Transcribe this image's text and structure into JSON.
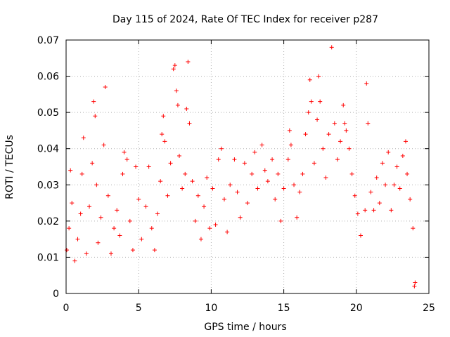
{
  "chart_data": {
    "type": "scatter",
    "title": "Day 115 of 2024, Rate Of TEC Index for receiver p287",
    "xlabel": "GPS time / hours",
    "ylabel": "ROTI / TECUs",
    "xlim": [
      0,
      25
    ],
    "ylim": [
      0,
      0.07
    ],
    "x_ticks": [
      0,
      5,
      10,
      15,
      20,
      25
    ],
    "x_tick_labels": [
      "0",
      "5",
      "10",
      "15",
      "20",
      "25"
    ],
    "y_ticks": [
      0,
      0.01,
      0.02,
      0.03,
      0.04,
      0.05,
      0.06,
      0.07
    ],
    "y_tick_labels": [
      "0",
      "0.01",
      "0.02",
      "0.03",
      "0.04",
      "0.05",
      "0.06",
      "0.07"
    ],
    "grid": true,
    "marker": "plus",
    "marker_color": "#ff0000",
    "series": [
      {
        "name": "ROTI",
        "points": [
          [
            0.05,
            0.012
          ],
          [
            0.2,
            0.018
          ],
          [
            0.3,
            0.034
          ],
          [
            0.4,
            0.025
          ],
          [
            0.6,
            0.009
          ],
          [
            0.8,
            0.015
          ],
          [
            1.0,
            0.022
          ],
          [
            1.1,
            0.033
          ],
          [
            1.2,
            0.043
          ],
          [
            1.4,
            0.011
          ],
          [
            1.6,
            0.024
          ],
          [
            1.8,
            0.036
          ],
          [
            1.9,
            0.053
          ],
          [
            2.0,
            0.049
          ],
          [
            2.1,
            0.03
          ],
          [
            2.2,
            0.014
          ],
          [
            2.4,
            0.021
          ],
          [
            2.6,
            0.041
          ],
          [
            2.7,
            0.057
          ],
          [
            2.9,
            0.027
          ],
          [
            3.1,
            0.011
          ],
          [
            3.3,
            0.018
          ],
          [
            3.5,
            0.023
          ],
          [
            3.7,
            0.016
          ],
          [
            3.9,
            0.033
          ],
          [
            4.0,
            0.039
          ],
          [
            4.2,
            0.037
          ],
          [
            4.4,
            0.02
          ],
          [
            4.6,
            0.012
          ],
          [
            4.8,
            0.035
          ],
          [
            5.0,
            0.026
          ],
          [
            5.2,
            0.015
          ],
          [
            5.5,
            0.024
          ],
          [
            5.7,
            0.035
          ],
          [
            5.9,
            0.018
          ],
          [
            6.1,
            0.012
          ],
          [
            6.3,
            0.022
          ],
          [
            6.5,
            0.031
          ],
          [
            6.6,
            0.044
          ],
          [
            6.7,
            0.049
          ],
          [
            6.8,
            0.042
          ],
          [
            7.0,
            0.027
          ],
          [
            7.2,
            0.036
          ],
          [
            7.4,
            0.062
          ],
          [
            7.5,
            0.063
          ],
          [
            7.6,
            0.056
          ],
          [
            7.7,
            0.052
          ],
          [
            7.8,
            0.038
          ],
          [
            8.0,
            0.029
          ],
          [
            8.2,
            0.033
          ],
          [
            8.3,
            0.051
          ],
          [
            8.4,
            0.064
          ],
          [
            8.5,
            0.047
          ],
          [
            8.7,
            0.031
          ],
          [
            8.9,
            0.02
          ],
          [
            9.1,
            0.027
          ],
          [
            9.3,
            0.015
          ],
          [
            9.5,
            0.024
          ],
          [
            9.7,
            0.032
          ],
          [
            9.9,
            0.018
          ],
          [
            10.1,
            0.029
          ],
          [
            10.3,
            0.019
          ],
          [
            10.5,
            0.037
          ],
          [
            10.7,
            0.04
          ],
          [
            10.9,
            0.026
          ],
          [
            11.1,
            0.017
          ],
          [
            11.3,
            0.03
          ],
          [
            11.6,
            0.037
          ],
          [
            11.8,
            0.028
          ],
          [
            12.0,
            0.021
          ],
          [
            12.3,
            0.036
          ],
          [
            12.5,
            0.025
          ],
          [
            12.8,
            0.033
          ],
          [
            13.0,
            0.039
          ],
          [
            13.2,
            0.029
          ],
          [
            13.5,
            0.041
          ],
          [
            13.7,
            0.034
          ],
          [
            13.9,
            0.031
          ],
          [
            14.2,
            0.037
          ],
          [
            14.4,
            0.026
          ],
          [
            14.6,
            0.033
          ],
          [
            14.8,
            0.02
          ],
          [
            15.0,
            0.029
          ],
          [
            15.3,
            0.037
          ],
          [
            15.4,
            0.045
          ],
          [
            15.5,
            0.041
          ],
          [
            15.7,
            0.03
          ],
          [
            15.9,
            0.021
          ],
          [
            16.1,
            0.028
          ],
          [
            16.3,
            0.033
          ],
          [
            16.5,
            0.044
          ],
          [
            16.7,
            0.05
          ],
          [
            16.8,
            0.059
          ],
          [
            16.9,
            0.053
          ],
          [
            17.1,
            0.036
          ],
          [
            17.3,
            0.048
          ],
          [
            17.4,
            0.06
          ],
          [
            17.5,
            0.053
          ],
          [
            17.7,
            0.04
          ],
          [
            17.9,
            0.032
          ],
          [
            18.1,
            0.044
          ],
          [
            18.3,
            0.068
          ],
          [
            18.5,
            0.047
          ],
          [
            18.7,
            0.037
          ],
          [
            18.9,
            0.042
          ],
          [
            19.1,
            0.052
          ],
          [
            19.2,
            0.047
          ],
          [
            19.3,
            0.045
          ],
          [
            19.5,
            0.04
          ],
          [
            19.7,
            0.033
          ],
          [
            19.9,
            0.027
          ],
          [
            20.1,
            0.022
          ],
          [
            20.3,
            0.016
          ],
          [
            20.6,
            0.023
          ],
          [
            20.7,
            0.058
          ],
          [
            20.8,
            0.047
          ],
          [
            21.0,
            0.028
          ],
          [
            21.2,
            0.023
          ],
          [
            21.4,
            0.032
          ],
          [
            21.6,
            0.025
          ],
          [
            21.8,
            0.036
          ],
          [
            22.0,
            0.03
          ],
          [
            22.2,
            0.039
          ],
          [
            22.4,
            0.023
          ],
          [
            22.6,
            0.03
          ],
          [
            22.8,
            0.035
          ],
          [
            23.0,
            0.029
          ],
          [
            23.2,
            0.038
          ],
          [
            23.4,
            0.042
          ],
          [
            23.5,
            0.033
          ],
          [
            23.7,
            0.026
          ],
          [
            23.9,
            0.018
          ],
          [
            24.0,
            0.002
          ],
          [
            24.05,
            0.003
          ]
        ]
      }
    ]
  }
}
